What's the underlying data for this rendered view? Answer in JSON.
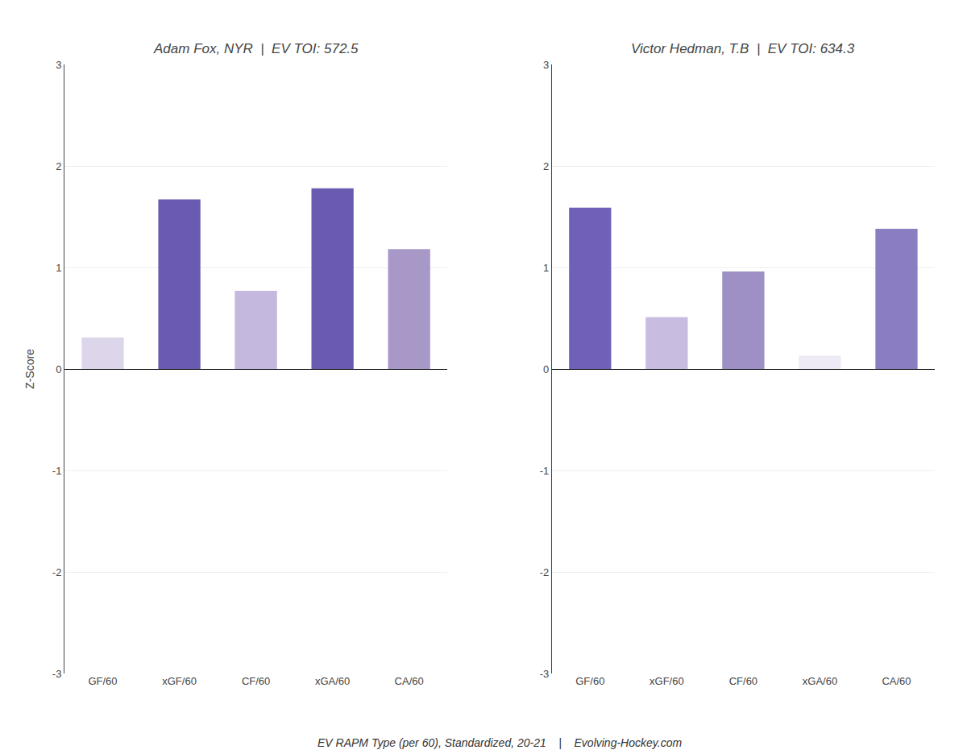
{
  "chart_data": [
    {
      "type": "bar",
      "title": "Adam Fox, NYR  |  EV TOI: 572.5",
      "xlabel": "EV RAPM Type (per 60), Standardized, 20-21    |    Evolving-Hockey.com",
      "ylabel": "Z-Score",
      "categories": [
        "GF/60",
        "xGF/60",
        "CF/60",
        "xGA/60",
        "CA/60"
      ],
      "values": [
        0.31,
        1.67,
        0.77,
        1.78,
        1.18
      ],
      "colors": [
        "#DDD5EA",
        "#6B5BB0",
        "#C5B8DE",
        "#6B5BB0",
        "#A898C8"
      ],
      "ylim": [
        -3,
        3
      ],
      "yticks": [
        -3,
        -2,
        -1,
        0,
        1,
        2,
        3
      ],
      "grid": true
    },
    {
      "type": "bar",
      "title": "Victor Hedman, T.B  |  EV TOI: 634.3",
      "categories": [
        "GF/60",
        "xGF/60",
        "CF/60",
        "xGA/60",
        "CA/60"
      ],
      "values": [
        1.59,
        0.51,
        0.96,
        0.13,
        1.38
      ],
      "colors": [
        "#7060B8",
        "#C8BCE0",
        "#9E90C4",
        "#EEEAF5",
        "#8B7EC0"
      ],
      "ylim": [
        -3,
        3
      ],
      "yticks": [
        -3,
        -2,
        -1,
        0,
        1,
        2,
        3
      ],
      "grid": true
    }
  ]
}
